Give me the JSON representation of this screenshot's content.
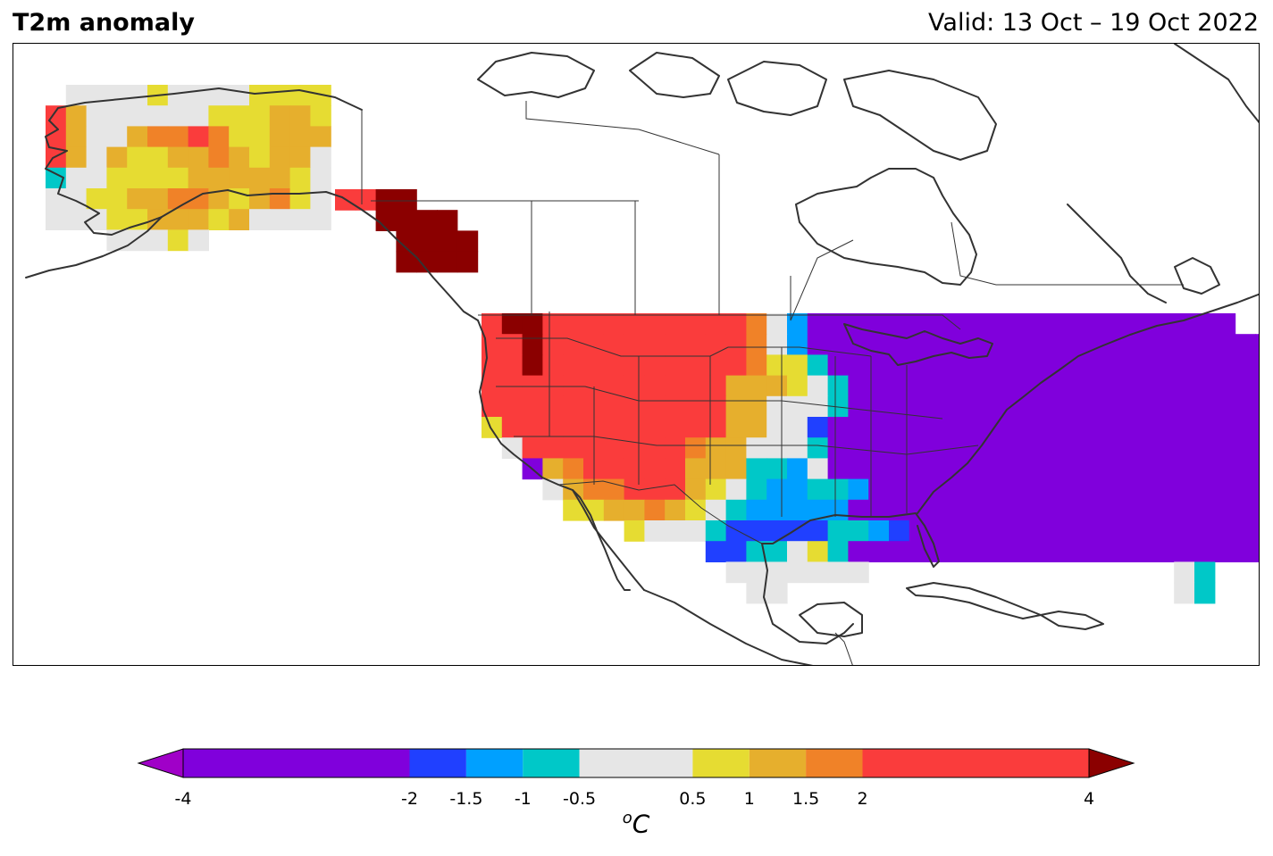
{
  "title": "T2m anomaly",
  "valid": "Valid: 13 Oct – 19 Oct 2022",
  "colorbar": {
    "levels": [
      -4,
      -2,
      -1.5,
      -1,
      -0.5,
      0.5,
      1,
      1.5,
      2,
      4
    ],
    "tick_labels": [
      "-4",
      "-2",
      "-1.5",
      "-1",
      "-0.5",
      "0.5",
      "1",
      "1.5",
      "2",
      "4"
    ],
    "colors": [
      "#8000dc",
      "#2040ff",
      "#00a0ff",
      "#00c8c8",
      "#e6e6e6",
      "#e6dc32",
      "#e6af2d",
      "#f08228",
      "#fa3c3c"
    ],
    "under_color": "#a000c8",
    "over_color": "#8b0000",
    "unit_base": "C",
    "unit_sup": "o"
  },
  "chart_data": {
    "type": "heatmap",
    "title": "T2m anomaly",
    "valid": "Valid: 13 Oct – 19 Oct 2022",
    "unit": "°C",
    "palette_keys": {
      "P": "< -4 or -4 to -2 (purple)",
      "B": "-2 to -1.5",
      "L": "-1.5 to -1",
      "C": "-1 to -0.5",
      "G": "-0.5 to 0.5",
      "Y": "0.5 to 1",
      "A": "1 to 1.5",
      "O": "1.5 to 2",
      "R": "2 to 4",
      "D": "> 4"
    },
    "regions": [
      {
        "name": "Alaska",
        "rows": [
          ".GGGGYGGGGYYYY",
          "RAGGGGGGYYYAAY",
          "RAGGAOOROYYAAA",
          "RAGAYYAAOAYAAG",
          "CGGYYYYAAAAAYG",
          "GGYYAAOOAYAOYG",
          "GGGYYAAAYAGGGG",
          "...GGGYG......"
        ]
      },
      {
        "name": "British Columbia coast",
        "rows": [
          "RRDD...",
          "..DDDD.",
          "...DDDD",
          "...DDDD"
        ]
      },
      {
        "name": "Contiguous US",
        "rows": [
          "RDDRRRRRRRRRROGLPPPPPPPPPPPPPPPPPPPPP",
          "RRDRRRRRRRRRROGLPPPPPPPPPPPPPPPPPPPPPPP....CC",
          "RRDRRRRRRRRRROYYCPPPPPPPPPPPPPPPPPPPPPPPPPLLCGGYRRD",
          "RRRRRRRRRRRRAAAYGCPPPPPPPPPPPPPPPPPPPPPPPPPPPPLCGYRRR",
          "RRRRRRRRRRRRAAGGGCPPPPPPPPPPPPPPPPPPPPPPPPPPPLCGYRR",
          "YRRRRRRRRRRRAAGGBPPPPPPPPPPPPPPPPPPPPPPPPPPPBCGGYR",
          ".GRRRRRRRROAAGGGCPPPPPPPPPPPPPPPPPPPPPPPPPPCCGG",
          "..PAORRRRRAAACCLGPPPPPPPPPPPPPPPPPPPPPPPPPPCC",
          "...GAOORRRAYGCLLCCLPPPPPPPPPPPPPPPPPPPPPPBCCC",
          "....YYAAOAYGCLLLLLPPPPPPPPPPPPPPPPPPPPPPPLC",
          ".......YGGGCBBBBBCCLBPPPPPPPPPPPPPPPPPPPB",
          "...........BBCCGYCPPPPPPPPPPPPPPPPPPPPPL",
          "............GGGGGGG...............GC",
          ".............GG...................GC"
        ]
      }
    ]
  }
}
